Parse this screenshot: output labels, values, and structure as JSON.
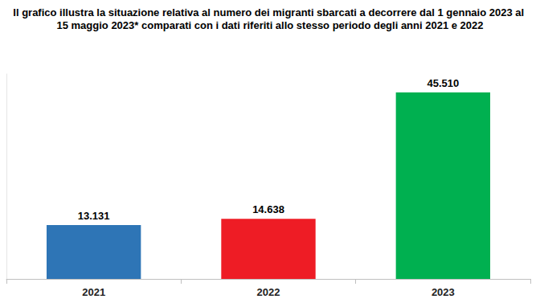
{
  "chart_data": {
    "type": "bar",
    "title": "Il grafico illustra la situazione relativa al numero dei migranti sbarcati a decorrere dal 1 gennaio 2023 al 15 maggio 2023* comparati con i dati riferiti allo stesso periodo degli anni 2021 e 2022",
    "categories": [
      "2021",
      "2022",
      "2023"
    ],
    "values": [
      13131,
      14638,
      45510
    ],
    "value_labels": [
      "13.131",
      "14.638",
      "45.510"
    ],
    "colors": [
      "#2e75b6",
      "#ee1c25",
      "#00b050"
    ],
    "ylim": [
      0,
      50000
    ],
    "data_labels": true,
    "tick_labels": "x",
    "grid": false
  }
}
